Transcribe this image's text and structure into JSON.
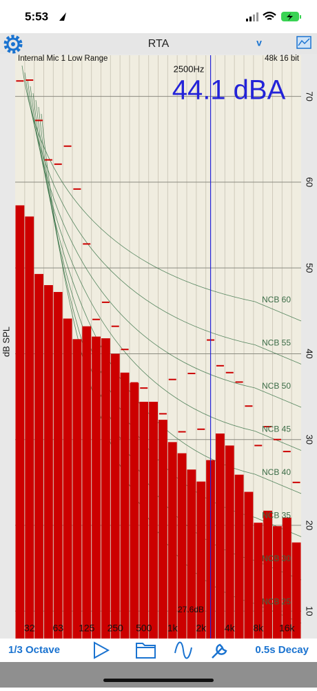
{
  "status_bar": {
    "time": "5:53"
  },
  "nav_bar": {
    "title": "RTA",
    "right_label": "v"
  },
  "chart_data": {
    "type": "bar",
    "header_left": "Internal Mic 1 Low Range",
    "header_right": "48k 16 bit",
    "y_label": "dB SPL",
    "categories": [
      null,
      "32",
      null,
      null,
      "63",
      null,
      null,
      "125",
      null,
      null,
      "250",
      null,
      null,
      "500",
      null,
      null,
      "1k",
      null,
      null,
      "2k",
      null,
      null,
      "4k",
      null,
      null,
      "8k",
      null,
      null,
      "16k",
      null
    ],
    "values": [
      57.3,
      56.0,
      49.3,
      48.0,
      47.2,
      44.1,
      41.7,
      43.2,
      42.0,
      41.8,
      40.0,
      37.8,
      36.6,
      34.4,
      34.4,
      32.3,
      29.7,
      28.4,
      26.5,
      25.1,
      27.6,
      30.7,
      29.3,
      25.9,
      23.9,
      20.3,
      21.7,
      19.9,
      20.9,
      18.0
    ],
    "color": "#cc0000",
    "peak_values": [
      71.8,
      71.9,
      67.2,
      62.6,
      62.1,
      64.2,
      59.2,
      52.8,
      44.0,
      46.0,
      43.2,
      40.5,
      36.6,
      36.0,
      33.5,
      33.0,
      37.0,
      30.9,
      37.7,
      31.2,
      41.6,
      38.6,
      37.8,
      36.7,
      33.9,
      29.3,
      31.5,
      30.0,
      28.6,
      25.0
    ],
    "peak_color": "#cc0000",
    "cursor": {
      "frequency_label": "2500Hz",
      "level_label": "44.1 dBA",
      "band_label": "27.6dB",
      "color": "#2323d8"
    },
    "annotations": [
      "NCB 60",
      "NCB 55",
      "NCB 50",
      "NCB 45",
      "NCB 40",
      "NCB 35",
      "NCB 30",
      "NCB 25"
    ],
    "ylim": [
      6.8,
      74.8
    ],
    "yticks": [
      10,
      20,
      30,
      40,
      50,
      60,
      70
    ],
    "grid": true
  },
  "toolbar": {
    "resolution": "1/3 Octave",
    "decay": "0.5s Decay"
  }
}
